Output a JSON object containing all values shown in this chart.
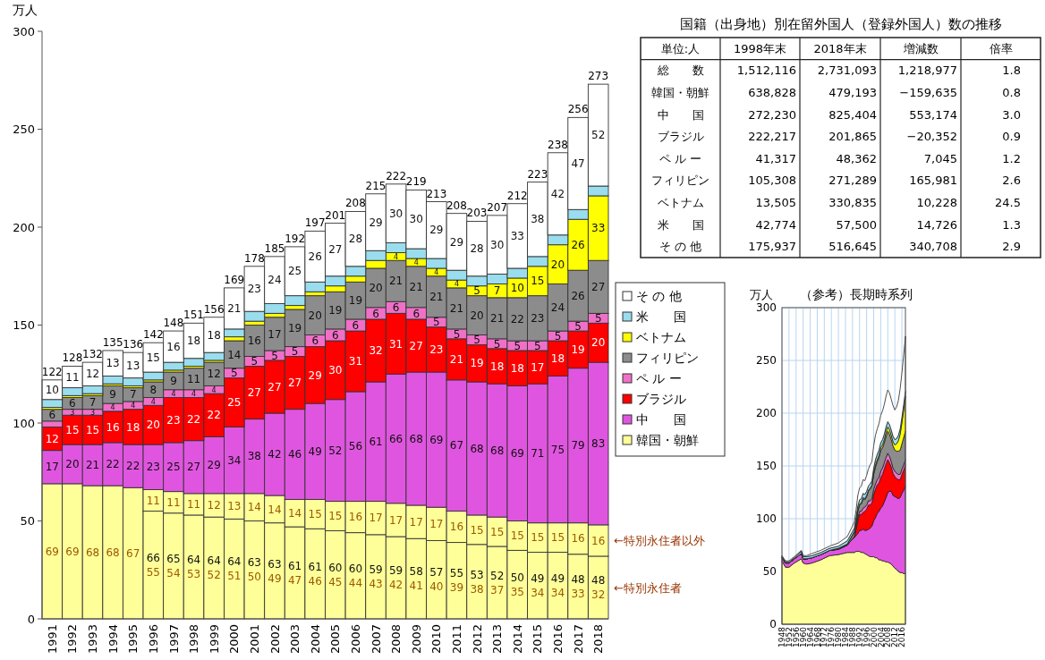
{
  "chart_data": [
    {
      "type": "bar",
      "stacked": true,
      "ylabel": "万人",
      "categories": [
        "1991",
        "1992",
        "1993",
        "1994",
        "1995",
        "1996",
        "1997",
        "1998",
        "1999",
        "2000",
        "2001",
        "2002",
        "2003",
        "2004",
        "2005",
        "2006",
        "2007",
        "2008",
        "2009",
        "2010",
        "2011",
        "2012",
        "2013",
        "2014",
        "2015",
        "2016",
        "2017",
        "2018"
      ],
      "ylim": [
        0,
        300
      ],
      "yticks": [
        0,
        50,
        100,
        150,
        200,
        250,
        300
      ],
      "legend": "right",
      "series": [
        {
          "name": "韓国・朝鮮",
          "color": "#ffff99",
          "values": [
            69,
            69,
            68,
            68,
            67,
            55,
            54,
            53,
            52,
            51,
            50,
            49,
            47,
            46,
            45,
            44,
            43,
            42,
            41,
            40,
            39,
            38,
            37,
            35,
            34,
            34,
            33,
            32
          ],
          "value_labels": [
            "69",
            "69",
            "68",
            "68",
            "67",
            "55",
            "54",
            "53",
            "52",
            "51",
            "50",
            "49",
            "47",
            "46",
            "45",
            "44",
            "43",
            "42",
            "41",
            "40",
            "39",
            "38",
            "37",
            "35",
            "34",
            "34",
            "33",
            "32"
          ]
        },
        {
          "color": "#ffff99",
          "values": [
            null,
            null,
            null,
            null,
            null,
            11,
            11,
            11,
            12,
            13,
            14,
            14,
            14,
            15,
            15,
            16,
            17,
            17,
            17,
            17,
            16,
            15,
            15,
            15,
            15,
            15,
            16,
            16
          ],
          "value_labels": [
            null,
            null,
            null,
            null,
            null,
            "11",
            "11",
            "11",
            "12",
            "13",
            "14",
            "14",
            "14",
            "15",
            "15",
            "16",
            "17",
            "17",
            "17",
            "17",
            "16",
            "15",
            "15",
            "15",
            "15",
            "15",
            "16",
            "16"
          ]
        },
        {
          "name": "中　　国",
          "color": "#e055e0",
          "values": [
            17,
            20,
            21,
            22,
            22,
            23,
            25,
            27,
            29,
            34,
            38,
            42,
            46,
            49,
            52,
            56,
            61,
            66,
            68,
            69,
            67,
            68,
            68,
            69,
            71,
            75,
            79,
            83
          ],
          "value_labels": [
            "17",
            "20",
            "21",
            "22",
            "22",
            "23",
            "25",
            "27",
            "29",
            "34",
            "38",
            "42",
            "46",
            "49",
            "52",
            "56",
            "61",
            "66",
            "68",
            "69",
            "67",
            "68",
            "68",
            "69",
            "71",
            "75",
            "79",
            "83"
          ]
        },
        {
          "name": "ブラジル",
          "color": "#ff0000",
          "values": [
            12,
            15,
            15,
            16,
            18,
            20,
            23,
            22,
            22,
            25,
            27,
            27,
            27,
            29,
            30,
            31,
            32,
            31,
            27,
            23,
            21,
            19,
            18,
            18,
            17,
            18,
            19,
            20
          ],
          "value_labels": [
            "12",
            "15",
            "15",
            "16",
            "18",
            "20",
            "23",
            "22",
            "22",
            "25",
            "27",
            "27",
            "27",
            "29",
            "30",
            "31",
            "32",
            "31",
            "27",
            "23",
            "21",
            "19",
            "18",
            "18",
            "17",
            "18",
            "19",
            "20"
          ]
        },
        {
          "name": "ペ ル ー",
          "color": "#f070c8",
          "values": [
            3,
            3,
            3,
            4,
            4,
            4,
            4,
            4,
            4,
            5,
            5,
            5,
            5,
            6,
            6,
            6,
            6,
            6,
            6,
            5,
            5,
            5,
            5,
            5,
            5,
            5,
            5,
            5
          ],
          "value_labels": [
            null,
            "3",
            "3",
            "4",
            "4",
            "4",
            "4",
            "4",
            "4",
            "5",
            "5",
            "5",
            "5",
            "6",
            "6",
            "6",
            "6",
            "6",
            "6",
            "5",
            "5",
            "5",
            "5",
            "5",
            "5",
            "5",
            "5",
            "5"
          ]
        },
        {
          "name": "フィリピン",
          "color": "#8c8c8c",
          "values": [
            6,
            6,
            7,
            9,
            7,
            8,
            9,
            11,
            12,
            14,
            16,
            17,
            19,
            20,
            19,
            19,
            20,
            21,
            21,
            21,
            21,
            20,
            21,
            22,
            23,
            24,
            26,
            27
          ],
          "value_labels": [
            "6",
            "6",
            "7",
            "9",
            "7",
            "8",
            "9",
            "11",
            "12",
            "14",
            "16",
            "17",
            "19",
            "20",
            "19",
            "19",
            "20",
            "21",
            "21",
            "21",
            "21",
            "20",
            "21",
            "22",
            "23",
            "24",
            "26",
            "27"
          ]
        },
        {
          "name": "ベトナム",
          "color": "#ffff00",
          "values": [
            1,
            1,
            1,
            1,
            1,
            1,
            1,
            1,
            1,
            2,
            2,
            2,
            2,
            2,
            3,
            3,
            4,
            4,
            4,
            4,
            4,
            5,
            7,
            10,
            15,
            20,
            26,
            33
          ],
          "value_labels": [
            null,
            null,
            null,
            null,
            null,
            null,
            null,
            null,
            null,
            null,
            null,
            null,
            null,
            null,
            null,
            null,
            null,
            "4",
            "4",
            "4",
            "4",
            "5",
            "7",
            "10",
            "15",
            "20",
            "26",
            "33"
          ]
        },
        {
          "name": "米　　国",
          "color": "#99ddee",
          "values": [
            4,
            4,
            4,
            4,
            4,
            4,
            4,
            4,
            4,
            4,
            5,
            5,
            5,
            5,
            5,
            5,
            5,
            5,
            5,
            5,
            5,
            5,
            5,
            5,
            5,
            5,
            5,
            5
          ]
        },
        {
          "name": "そ の 他",
          "color": "#ffffff",
          "values": [
            10,
            11,
            12,
            13,
            13,
            15,
            16,
            18,
            18,
            21,
            23,
            24,
            25,
            26,
            27,
            28,
            29,
            30,
            30,
            29,
            29,
            28,
            30,
            33,
            38,
            42,
            47,
            52
          ],
          "value_labels": [
            "10",
            "11",
            "12",
            "13",
            "13",
            "15",
            "16",
            "18",
            "18",
            "21",
            "23",
            "24",
            "25",
            "26",
            "27",
            "28",
            "29",
            "30",
            "30",
            "29",
            "29",
            "28",
            "30",
            "33",
            "38",
            "42",
            "47",
            "52"
          ]
        }
      ],
      "totals": [
        "122",
        "128",
        "132",
        "135",
        "136",
        "142",
        "148",
        "151",
        "156",
        "169",
        "178",
        "185",
        "192",
        "197",
        "201",
        "208",
        "215",
        "222",
        "219",
        "213",
        "208",
        "203",
        "207",
        "212",
        "223",
        "238",
        "256",
        "273"
      ],
      "annotations": [
        "←特別永住者以外",
        "←特別永住者",
        "66",
        "65",
        "64",
        "64",
        "64",
        "63",
        "63",
        "61",
        "61",
        "60",
        "60",
        "59",
        "59",
        "58",
        "57",
        "55",
        "53",
        "52",
        "50",
        "49",
        "49",
        "48",
        "48"
      ]
    },
    {
      "type": "other",
      "title": "国籍（出身地）別在留外国人（登録外国人）数の推移",
      "subtitle": "単位:人",
      "categories": [
        "1998年末",
        "2018年末",
        "増減数",
        "倍率"
      ],
      "y_categories": [
        "総　　数",
        "韓国・朝鮮",
        "中　　国",
        "ブラジル",
        "ペ ル ー",
        "フィリピン",
        "ベトナム",
        "米　　国",
        "そ の 他"
      ],
      "cell_labels": [
        [
          "1,512,116",
          "2,731,093",
          "1,218,977",
          "1.8"
        ],
        [
          "638,828",
          "479,193",
          "−159,635",
          "0.8"
        ],
        [
          "272,230",
          "825,404",
          "553,174",
          "3.0"
        ],
        [
          "222,217",
          "201,865",
          "−20,352",
          "0.9"
        ],
        [
          "41,317",
          "48,362",
          "7,045",
          "1.2"
        ],
        [
          "105,308",
          "271,289",
          "165,981",
          "2.6"
        ],
        [
          "13,505",
          "330,835",
          "10,228",
          "24.5"
        ],
        [
          "42,774",
          "57,500",
          "14,726",
          "1.3"
        ],
        [
          "175,937",
          "516,645",
          "340,708",
          "2.9"
        ]
      ]
    },
    {
      "type": "area",
      "stacked": true,
      "title": "（参考）長期時系列",
      "ylabel": "万人",
      "grid": true,
      "xlim": [
        1948,
        2018
      ],
      "xticks": [
        1948,
        1952,
        1956,
        1960,
        1964,
        1968,
        1972,
        1976,
        1980,
        1984,
        1988,
        1992,
        1996,
        2000,
        2004,
        2008,
        2012,
        2016
      ],
      "ylim": [
        0,
        300
      ],
      "yticks": [
        0,
        50,
        100,
        150,
        200,
        250,
        300
      ],
      "x": [
        1948,
        1950,
        1952,
        1955,
        1959,
        1960,
        1962,
        1965,
        1970,
        1975,
        1980,
        1985,
        1988,
        1989,
        1990,
        1991,
        1992,
        1993,
        1994,
        1995,
        1996,
        1997,
        1998,
        1999,
        2000,
        2001,
        2002,
        2003,
        2004,
        2005,
        2006,
        2007,
        2008,
        2009,
        2010,
        2011,
        2012,
        2013,
        2014,
        2015,
        2016,
        2017,
        2018
      ],
      "series": [
        {
          "color": "#ffff99",
          "values": [
            60,
            54,
            54,
            58,
            62,
            58,
            57,
            58,
            61,
            65,
            66,
            68,
            68,
            68,
            69,
            69,
            69,
            68,
            68,
            67,
            66,
            65,
            64,
            64,
            64,
            63,
            63,
            61,
            61,
            60,
            60,
            59,
            59,
            58,
            57,
            55,
            53,
            52,
            50,
            49,
            49,
            48,
            48
          ]
        },
        {
          "color": "#e055e0",
          "values": [
            3,
            4,
            4,
            4,
            5,
            4,
            5,
            5,
            5,
            5,
            5,
            7,
            13,
            14,
            15,
            17,
            20,
            21,
            22,
            22,
            23,
            25,
            27,
            29,
            34,
            38,
            42,
            46,
            49,
            52,
            56,
            61,
            66,
            68,
            69,
            67,
            68,
            68,
            69,
            71,
            75,
            79,
            83
          ]
        },
        {
          "color": "#ff0000",
          "values": [
            0,
            0,
            0,
            0,
            0,
            0,
            0,
            0,
            0,
            0,
            0,
            0,
            0,
            1,
            6,
            12,
            15,
            15,
            16,
            18,
            20,
            23,
            22,
            22,
            25,
            27,
            27,
            27,
            29,
            30,
            31,
            32,
            31,
            27,
            23,
            21,
            19,
            18,
            18,
            17,
            18,
            19,
            20
          ]
        },
        {
          "color": "#f070c8",
          "values": [
            0,
            0,
            0,
            0,
            0,
            0,
            0,
            0,
            0,
            0,
            0,
            0,
            0,
            0,
            1,
            3,
            3,
            3,
            4,
            4,
            4,
            4,
            4,
            4,
            5,
            5,
            5,
            5,
            6,
            6,
            6,
            6,
            6,
            6,
            5,
            5,
            5,
            5,
            5,
            5,
            5,
            5,
            5
          ]
        },
        {
          "color": "#8c8c8c",
          "values": [
            0,
            0,
            0,
            0,
            0,
            0,
            0,
            0,
            0,
            0,
            1,
            1,
            3,
            4,
            5,
            6,
            6,
            7,
            9,
            7,
            8,
            9,
            11,
            12,
            14,
            16,
            17,
            19,
            20,
            19,
            19,
            20,
            21,
            21,
            21,
            21,
            20,
            21,
            22,
            23,
            24,
            26,
            27
          ]
        },
        {
          "color": "#ffff00",
          "values": [
            0,
            0,
            0,
            0,
            0,
            0,
            0,
            0,
            0,
            0,
            0,
            0,
            1,
            1,
            1,
            1,
            1,
            1,
            1,
            1,
            1,
            1,
            1,
            1,
            2,
            2,
            2,
            2,
            2,
            3,
            3,
            4,
            4,
            4,
            4,
            4,
            5,
            7,
            10,
            15,
            20,
            26,
            33
          ]
        },
        {
          "color": "#99ddee",
          "values": [
            1,
            1,
            1,
            1,
            2,
            2,
            2,
            2,
            2,
            2,
            2,
            3,
            3,
            3,
            4,
            4,
            4,
            4,
            4,
            4,
            4,
            4,
            4,
            4,
            4,
            5,
            5,
            5,
            5,
            5,
            5,
            5,
            5,
            5,
            5,
            5,
            5,
            5,
            5,
            5,
            5,
            5,
            5
          ]
        },
        {
          "color": "#ffffff",
          "values": [
            1,
            1,
            1,
            1,
            1,
            1,
            1,
            2,
            2,
            2,
            3,
            4,
            5,
            6,
            7,
            10,
            11,
            12,
            13,
            13,
            15,
            16,
            18,
            18,
            21,
            23,
            24,
            25,
            26,
            27,
            28,
            29,
            30,
            30,
            29,
            29,
            28,
            30,
            33,
            38,
            42,
            47,
            52
          ]
        }
      ]
    }
  ]
}
